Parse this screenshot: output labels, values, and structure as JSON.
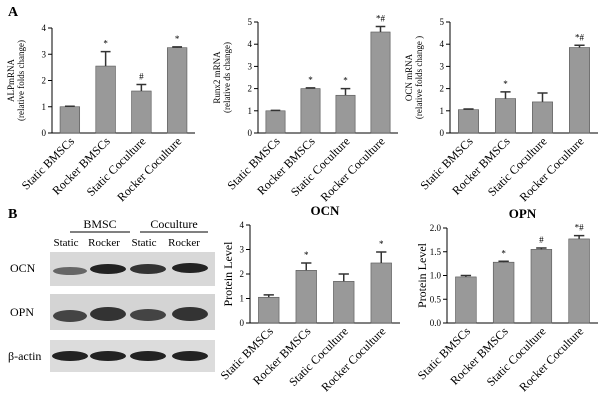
{
  "panel_labels": [
    "A",
    "B"
  ],
  "blot": {
    "groups": [
      "BMSC",
      "Coculture"
    ],
    "lanes": [
      "Static",
      "Rocker",
      "Static",
      "Rocker"
    ],
    "rows": [
      "OCN",
      "OPN",
      "β-actin"
    ]
  },
  "chart_data": [
    {
      "type": "bar",
      "ylabel": [
        "ALPmRNA",
        "(relative folds change)"
      ],
      "categories": [
        "Static BMSCs",
        "Rocker BMSCs",
        "Static Coculture",
        "Rocker Coculture"
      ],
      "values": [
        1.0,
        2.55,
        1.6,
        3.25
      ],
      "errors": [
        0.02,
        0.55,
        0.25,
        0.03
      ],
      "annotations": [
        null,
        "*",
        "#",
        "*"
      ],
      "color": "#999999",
      "ylim": [
        0,
        4
      ],
      "yticks": [
        0,
        1,
        2,
        3,
        4
      ]
    },
    {
      "type": "bar",
      "ylabel": [
        "Runx2 mRNA",
        "(relative ds change)"
      ],
      "categories": [
        "Static BMSCs",
        "Rocker BMSCs",
        "Static Coculture",
        "Rocker Coculture"
      ],
      "values": [
        1.0,
        2.0,
        1.7,
        4.55
      ],
      "errors": [
        0.02,
        0.03,
        0.3,
        0.25
      ],
      "annotations": [
        null,
        "*",
        "*",
        "*#"
      ],
      "color": "#999999",
      "ylim": [
        0,
        5
      ],
      "yticks": [
        0,
        1,
        2,
        3,
        4,
        5
      ]
    },
    {
      "type": "bar",
      "ylabel": [
        "OCN mRNA",
        "(relative folds change )"
      ],
      "categories": [
        "Static BMSCs",
        "Rocker BMSCs",
        "Static Coculture",
        "Rocker Coculture"
      ],
      "values": [
        1.05,
        1.55,
        1.4,
        3.85
      ],
      "errors": [
        0.03,
        0.3,
        0.4,
        0.1
      ],
      "annotations": [
        null,
        "*",
        null,
        "*#"
      ],
      "color": "#999999",
      "ylim": [
        0,
        5
      ],
      "yticks": [
        0,
        1,
        2,
        3,
        4,
        5
      ]
    },
    {
      "type": "bar",
      "title": "OCN",
      "ylabel": "Protein Level",
      "categories": [
        "Static BMSCs",
        "Rocker BMSCs",
        "Static Coculture",
        "Rocker Coculture"
      ],
      "values": [
        1.05,
        2.15,
        1.7,
        2.45
      ],
      "errors": [
        0.1,
        0.3,
        0.3,
        0.45
      ],
      "annotations": [
        null,
        "*",
        null,
        "*"
      ],
      "color": "#999999",
      "ylim": [
        0,
        4
      ],
      "yticks": [
        0,
        1,
        2,
        3,
        4
      ]
    },
    {
      "type": "bar",
      "title": "OPN",
      "ylabel": "Protein Level",
      "categories": [
        "Static BMSCs",
        "Rocker BMSCs",
        "Static Coculture",
        "Rocker Coculture"
      ],
      "values": [
        0.97,
        1.28,
        1.55,
        1.77
      ],
      "errors": [
        0.03,
        0.02,
        0.03,
        0.07
      ],
      "annotations": [
        null,
        "*",
        "#",
        "*#"
      ],
      "color": "#999999",
      "ylim": [
        0,
        2
      ],
      "yticks": [
        {
          "value": 0,
          "label": "0.0"
        },
        {
          "value": 0.5,
          "label": "0.5"
        },
        {
          "value": 1,
          "label": "1.0"
        },
        {
          "value": 1.5,
          "label": "1.5"
        },
        {
          "value": 2,
          "label": "2.0"
        }
      ]
    }
  ]
}
